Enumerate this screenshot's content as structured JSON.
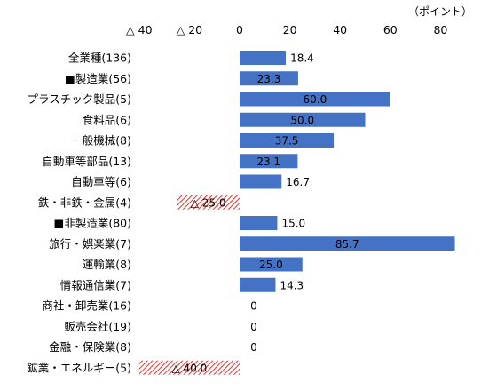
{
  "chart_data": {
    "type": "bar",
    "orientation": "horizontal",
    "unit": "（ポイント）",
    "xlim": [
      -40,
      88
    ],
    "xticks": [
      -40,
      -20,
      0,
      20,
      40,
      60,
      80
    ],
    "tick_labels": [
      "△ 40",
      "△ 20",
      "0",
      "20",
      "40",
      "60",
      "80"
    ],
    "tick_position": "top",
    "grid": false,
    "categories": [
      "全業種(136)",
      "■製造業(56)",
      "プラスチック製品(5)",
      "食料品(6)",
      "一般機械(8)",
      "自動車等部品(13)",
      "自動車等(6)",
      "鉄・非鉄・金属(4)",
      "■非製造業(80)",
      "旅行・娯楽業(7)",
      "運輸業(8)",
      "情報通信業(7)",
      "商社・卸売業(16)",
      "販売会社(19)",
      "金融・保険業(8)",
      "鉱業・エネルギー(5)"
    ],
    "values": [
      18.4,
      23.3,
      60.0,
      50.0,
      37.5,
      23.1,
      16.7,
      -25.0,
      15.0,
      85.7,
      25.0,
      14.3,
      0,
      0,
      0,
      -40.0
    ],
    "value_labels": [
      "18.4",
      "23.3",
      "60.0",
      "50.0",
      "37.5",
      "23.1",
      "16.7",
      "△ 25.0",
      "15.0",
      "85.7",
      "25.0",
      "14.3",
      "0",
      "0",
      "0",
      "△ 40.0"
    ],
    "colors": {
      "positive": "#4472c4",
      "negative_hatch": "#e0403a",
      "negative_bg": "#ffffff"
    }
  }
}
